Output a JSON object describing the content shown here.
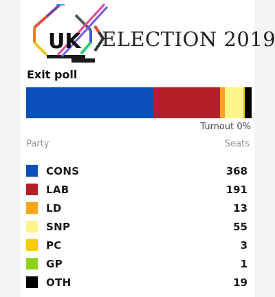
{
  "logo": {
    "badge": "UK",
    "title": "ELECTION 2019"
  },
  "section_title": "Exit poll",
  "turnout": {
    "label": "Turnout",
    "value": "0%"
  },
  "columns": {
    "party": "Party",
    "seats": "Seats"
  },
  "parties": [
    {
      "code": "CONS",
      "seats": 368,
      "color": "#0b4fbd"
    },
    {
      "code": "LAB",
      "seats": 191,
      "color": "#b3202a"
    },
    {
      "code": "LD",
      "seats": 13,
      "color": "#f7a61a"
    },
    {
      "code": "SNP",
      "seats": 55,
      "color": "#fff48a"
    },
    {
      "code": "PC",
      "seats": 3,
      "color": "#f5cc00"
    },
    {
      "code": "GP",
      "seats": 1,
      "color": "#8fd11b"
    },
    {
      "code": "OTH",
      "seats": 19,
      "color": "#000000"
    }
  ],
  "chart_data": {
    "type": "bar",
    "orientation": "horizontal-stacked",
    "categories": [
      "CONS",
      "LAB",
      "LD",
      "SNP",
      "PC",
      "GP",
      "OTH"
    ],
    "values": [
      368,
      191,
      13,
      55,
      3,
      1,
      19
    ],
    "total_seats": 650
  }
}
